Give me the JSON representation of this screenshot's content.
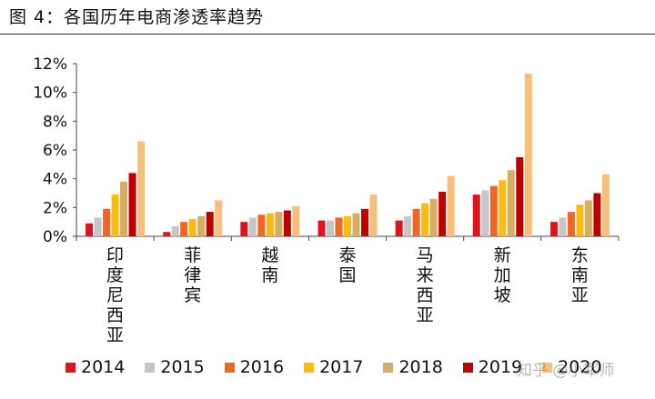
{
  "figure_title": "图  4：各国历年电商渗透率趋势",
  "watermark": "知乎 @小军师",
  "colors": {
    "2014": "#e0141b",
    "2015": "#c6c6c6",
    "2016": "#f26522",
    "2017": "#fbbb10",
    "2018": "#d8ad62",
    "2019": "#c00000",
    "2020": "#f7c07a"
  },
  "chart_data": {
    "type": "bar",
    "title": "",
    "xlabel": "",
    "ylabel": "",
    "ylim": [
      0,
      12
    ],
    "yticks": [
      "0%",
      "2%",
      "4%",
      "6%",
      "8%",
      "10%",
      "12%"
    ],
    "categories": [
      "印度尼西亚",
      "菲律宾",
      "越南",
      "泰国",
      "马来西亚",
      "新加坡",
      "东南亚"
    ],
    "series": [
      {
        "name": "2014",
        "values": [
          0.9,
          0.3,
          1.0,
          1.1,
          1.1,
          2.9,
          1.0
        ]
      },
      {
        "name": "2015",
        "values": [
          1.3,
          0.7,
          1.3,
          1.1,
          1.4,
          3.2,
          1.3
        ]
      },
      {
        "name": "2016",
        "values": [
          1.9,
          1.0,
          1.5,
          1.3,
          1.9,
          3.5,
          1.7
        ]
      },
      {
        "name": "2017",
        "values": [
          2.9,
          1.2,
          1.6,
          1.4,
          2.3,
          3.9,
          2.2
        ]
      },
      {
        "name": "2018",
        "values": [
          3.8,
          1.4,
          1.7,
          1.6,
          2.6,
          4.6,
          2.5
        ]
      },
      {
        "name": "2019",
        "values": [
          4.4,
          1.7,
          1.8,
          1.9,
          3.1,
          5.5,
          3.0
        ]
      },
      {
        "name": "2020",
        "values": [
          6.6,
          2.5,
          2.1,
          2.9,
          4.2,
          11.3,
          4.3
        ]
      }
    ],
    "grid": false,
    "legend_position": "bottom"
  }
}
